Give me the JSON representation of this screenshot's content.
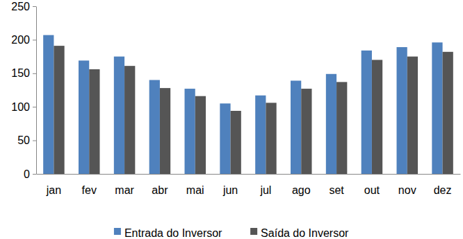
{
  "chart_data": {
    "type": "bar",
    "categories": [
      "jan",
      "fev",
      "mar",
      "abr",
      "mai",
      "jun",
      "jul",
      "ago",
      "set",
      "out",
      "nov",
      "dez"
    ],
    "series": [
      {
        "name": "Entrada do Inversor",
        "color": "#4f81bd",
        "values": [
          207,
          169,
          175,
          140,
          127,
          105,
          117,
          139,
          149,
          184,
          189,
          196
        ]
      },
      {
        "name": "Saída do Inversor",
        "color": "#555555",
        "values": [
          191,
          156,
          161,
          128,
          116,
          94,
          106,
          127,
          137,
          170,
          175,
          182
        ]
      }
    ],
    "ylim": [
      0,
      250
    ],
    "yticks": [
      0,
      50,
      100,
      150,
      200,
      250
    ],
    "grid": false,
    "legend": "bottom"
  }
}
